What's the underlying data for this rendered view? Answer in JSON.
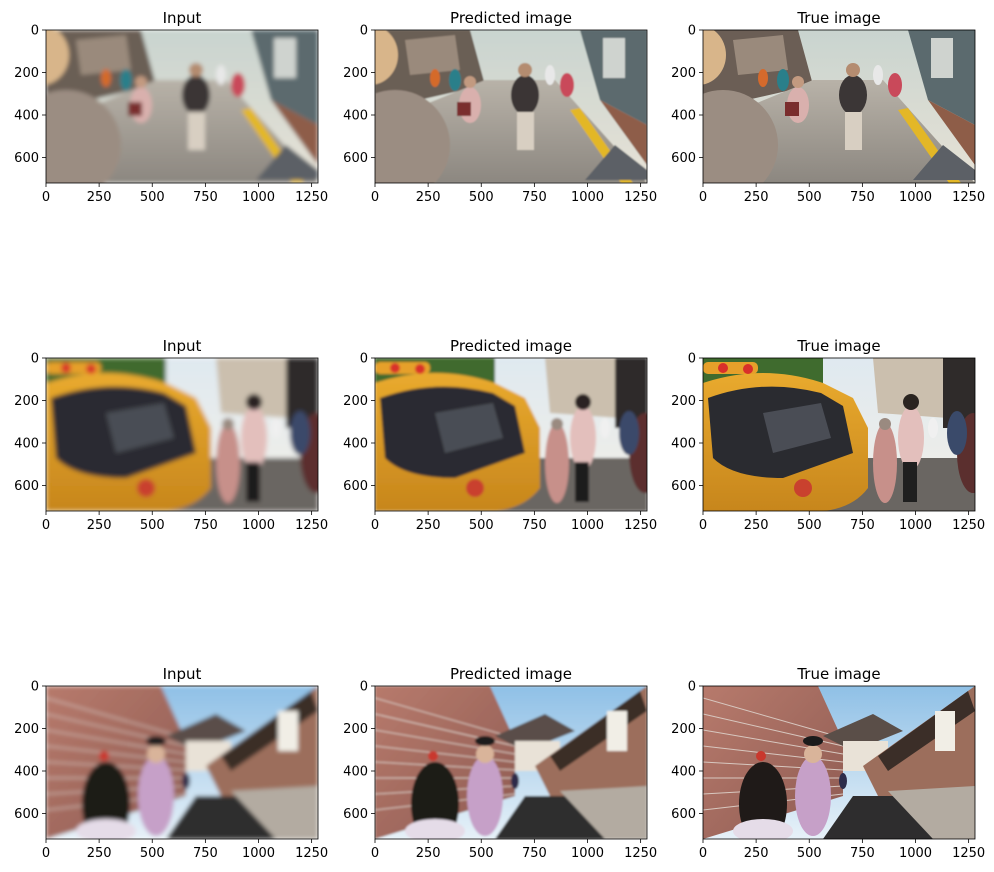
{
  "figure": {
    "rows": 3,
    "cols": 3
  },
  "chart_data": [
    {
      "type": "image",
      "row": 0,
      "col": 0,
      "title": "Input",
      "xticks": [
        0,
        250,
        500,
        750,
        1000,
        1250
      ],
      "yticks": [
        0,
        200,
        400,
        600
      ],
      "xlim": [
        0,
        1280
      ],
      "ylim": [
        720,
        0
      ],
      "scene": "street",
      "blur": 2.2
    },
    {
      "type": "image",
      "row": 0,
      "col": 1,
      "title": "Predicted image",
      "xticks": [
        0,
        250,
        500,
        750,
        1000,
        1250
      ],
      "yticks": [
        0,
        200,
        400,
        600
      ],
      "xlim": [
        0,
        1280
      ],
      "ylim": [
        720,
        0
      ],
      "scene": "street",
      "blur": 0.9
    },
    {
      "type": "image",
      "row": 0,
      "col": 2,
      "title": "True image",
      "xticks": [
        0,
        250,
        500,
        750,
        1000,
        1250
      ],
      "yticks": [
        0,
        200,
        400,
        600
      ],
      "xlim": [
        0,
        1280
      ],
      "ylim": [
        720,
        0
      ],
      "scene": "street",
      "blur": 0
    },
    {
      "type": "image",
      "row": 1,
      "col": 0,
      "title": "Input",
      "xticks": [
        0,
        250,
        500,
        750,
        1000,
        1250
      ],
      "yticks": [
        0,
        200,
        400,
        600
      ],
      "xlim": [
        0,
        1280
      ],
      "ylim": [
        720,
        0
      ],
      "scene": "taxi",
      "blur": 2.5
    },
    {
      "type": "image",
      "row": 1,
      "col": 1,
      "title": "Predicted image",
      "xticks": [
        0,
        250,
        500,
        750,
        1000,
        1250
      ],
      "yticks": [
        0,
        200,
        400,
        600
      ],
      "xlim": [
        0,
        1280
      ],
      "ylim": [
        720,
        0
      ],
      "scene": "taxi",
      "blur": 1.2
    },
    {
      "type": "image",
      "row": 1,
      "col": 2,
      "title": "True image",
      "xticks": [
        0,
        250,
        500,
        750,
        1000,
        1250
      ],
      "yticks": [
        0,
        200,
        400,
        600
      ],
      "xlim": [
        0,
        1280
      ],
      "ylim": [
        720,
        0
      ],
      "scene": "taxi",
      "blur": 0
    },
    {
      "type": "image",
      "row": 2,
      "col": 0,
      "title": "Input",
      "xticks": [
        0,
        250,
        500,
        750,
        1000,
        1250
      ],
      "yticks": [
        0,
        200,
        400,
        600
      ],
      "xlim": [
        0,
        1280
      ],
      "ylim": [
        720,
        0
      ],
      "scene": "alley",
      "blur": 2.2
    },
    {
      "type": "image",
      "row": 2,
      "col": 1,
      "title": "Predicted image",
      "xticks": [
        0,
        250,
        500,
        750,
        1000,
        1250
      ],
      "yticks": [
        0,
        200,
        400,
        600
      ],
      "xlim": [
        0,
        1280
      ],
      "ylim": [
        720,
        0
      ],
      "scene": "alley",
      "blur": 1.0
    },
    {
      "type": "image",
      "row": 2,
      "col": 2,
      "title": "True image",
      "xticks": [
        0,
        250,
        500,
        750,
        1000,
        1250
      ],
      "yticks": [
        0,
        200,
        400,
        600
      ],
      "xlim": [
        0,
        1280
      ],
      "ylim": [
        720,
        0
      ],
      "scene": "alley",
      "blur": 0
    }
  ]
}
